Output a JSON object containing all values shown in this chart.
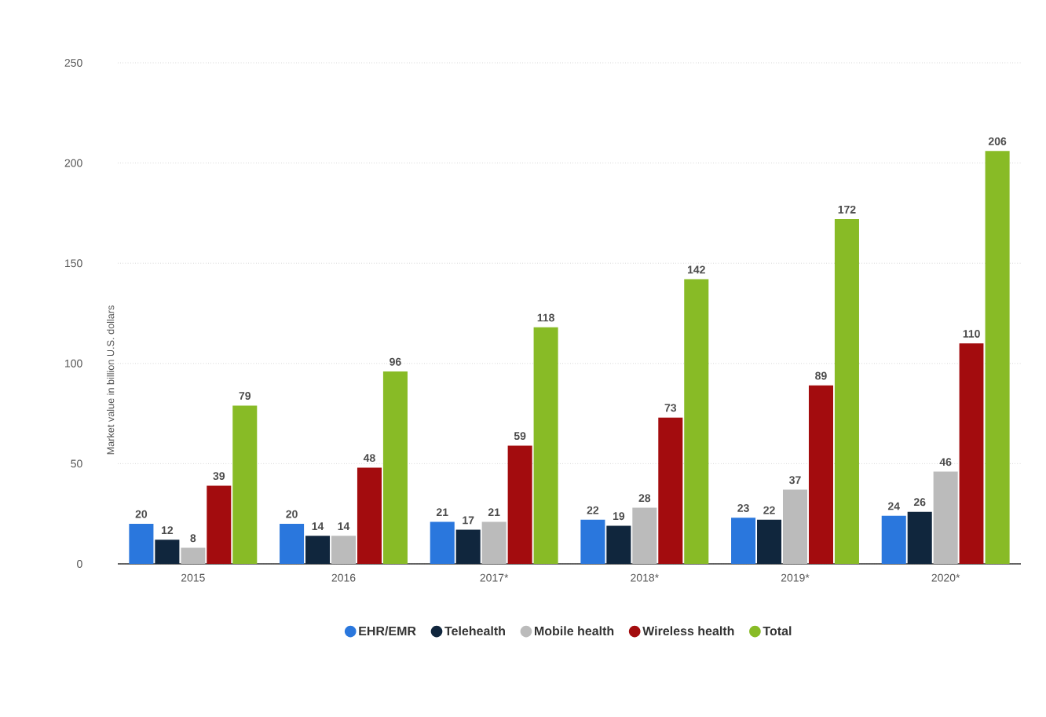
{
  "chart_data": {
    "type": "bar",
    "ylabel": "Market value in billion U.S. dollars",
    "categories": [
      "2015",
      "2016",
      "2017*",
      "2018*",
      "2019*",
      "2020*"
    ],
    "series": [
      {
        "name": "EHR/EMR",
        "color": "#2a77dd",
        "values": [
          20,
          20,
          21,
          22,
          23,
          24
        ]
      },
      {
        "name": "Telehealth",
        "color": "#10263d",
        "values": [
          12,
          14,
          17,
          19,
          22,
          26
        ]
      },
      {
        "name": "Mobile health",
        "color": "#bbbbbb",
        "values": [
          8,
          14,
          21,
          28,
          37,
          46
        ]
      },
      {
        "name": "Wireless health",
        "color": "#a30c0e",
        "values": [
          39,
          48,
          59,
          73,
          89,
          110
        ]
      },
      {
        "name": "Total",
        "color": "#88bb26",
        "values": [
          79,
          96,
          118,
          142,
          172,
          206
        ]
      }
    ],
    "ylim": [
      0,
      250
    ],
    "yticks": [
      0,
      50,
      100,
      150,
      200,
      250
    ],
    "grid": "y",
    "legend": "bottom",
    "marker": "circle",
    "data_labels": true
  }
}
